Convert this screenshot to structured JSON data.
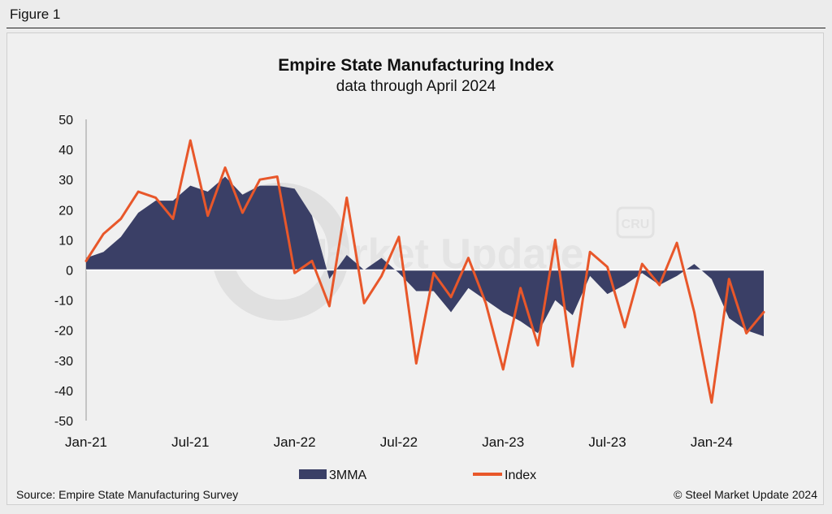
{
  "figure_label": "Figure 1",
  "watermark": "Steel Market Update",
  "watermark_logo": "CRU",
  "footer": {
    "source": "Source: Empire State Manufacturing Survey",
    "copyright": "© Steel Market Update 2024"
  },
  "colors": {
    "index": "#e8572a",
    "mma": "#3a3f66",
    "background": "#f0f0f0"
  },
  "chart_data": {
    "type": "line",
    "title": "Empire State Manufacturing Index",
    "subtitle": "data through April 2024",
    "xlabel": "",
    "ylabel": "",
    "ylim": [
      -50,
      50
    ],
    "yticks": [
      50,
      40,
      30,
      20,
      10,
      0,
      -10,
      -20,
      -30,
      -40,
      -50
    ],
    "x": [
      "Jan-21",
      "Feb-21",
      "Mar-21",
      "Apr-21",
      "May-21",
      "Jun-21",
      "Jul-21",
      "Aug-21",
      "Sep-21",
      "Oct-21",
      "Nov-21",
      "Dec-21",
      "Jan-22",
      "Feb-22",
      "Mar-22",
      "Apr-22",
      "May-22",
      "Jun-22",
      "Jul-22",
      "Aug-22",
      "Sep-22",
      "Oct-22",
      "Nov-22",
      "Dec-22",
      "Jan-23",
      "Feb-23",
      "Mar-23",
      "Apr-23",
      "May-23",
      "Jun-23",
      "Jul-23",
      "Aug-23",
      "Sep-23",
      "Oct-23",
      "Nov-23",
      "Dec-23",
      "Jan-24",
      "Feb-24",
      "Mar-24",
      "Apr-24"
    ],
    "xtick_labels": [
      "Jan-21",
      "Jul-21",
      "Jan-22",
      "Jul-22",
      "Jan-23",
      "Jul-23",
      "Jan-24"
    ],
    "xtick_indices": [
      0,
      6,
      12,
      18,
      24,
      30,
      36
    ],
    "legend": [
      "3MMA",
      "Index"
    ],
    "series": [
      {
        "name": "3MMA",
        "kind": "area",
        "values": [
          4,
          6,
          11,
          19,
          23,
          23,
          28,
          26,
          31,
          25,
          28,
          28,
          27,
          18,
          -3,
          5,
          0,
          4,
          -1,
          -7,
          -7,
          -14,
          -6,
          -10,
          -14,
          -17,
          -21,
          -10,
          -15,
          -2,
          -8,
          -5,
          -1,
          -5,
          -2,
          2,
          -3,
          -16,
          -20,
          -22
        ]
      },
      {
        "name": "Index",
        "kind": "line",
        "values": [
          3,
          12,
          17,
          26,
          24,
          17,
          43,
          18,
          34,
          19,
          30,
          31,
          -1,
          3,
          -12,
          24,
          -11,
          -2,
          11,
          -31,
          -1,
          -9,
          4,
          -11,
          -33,
          -6,
          -25,
          10,
          -32,
          6,
          1,
          -19,
          2,
          -5,
          9,
          -14,
          -44,
          -3,
          -21,
          -14
        ]
      }
    ]
  }
}
